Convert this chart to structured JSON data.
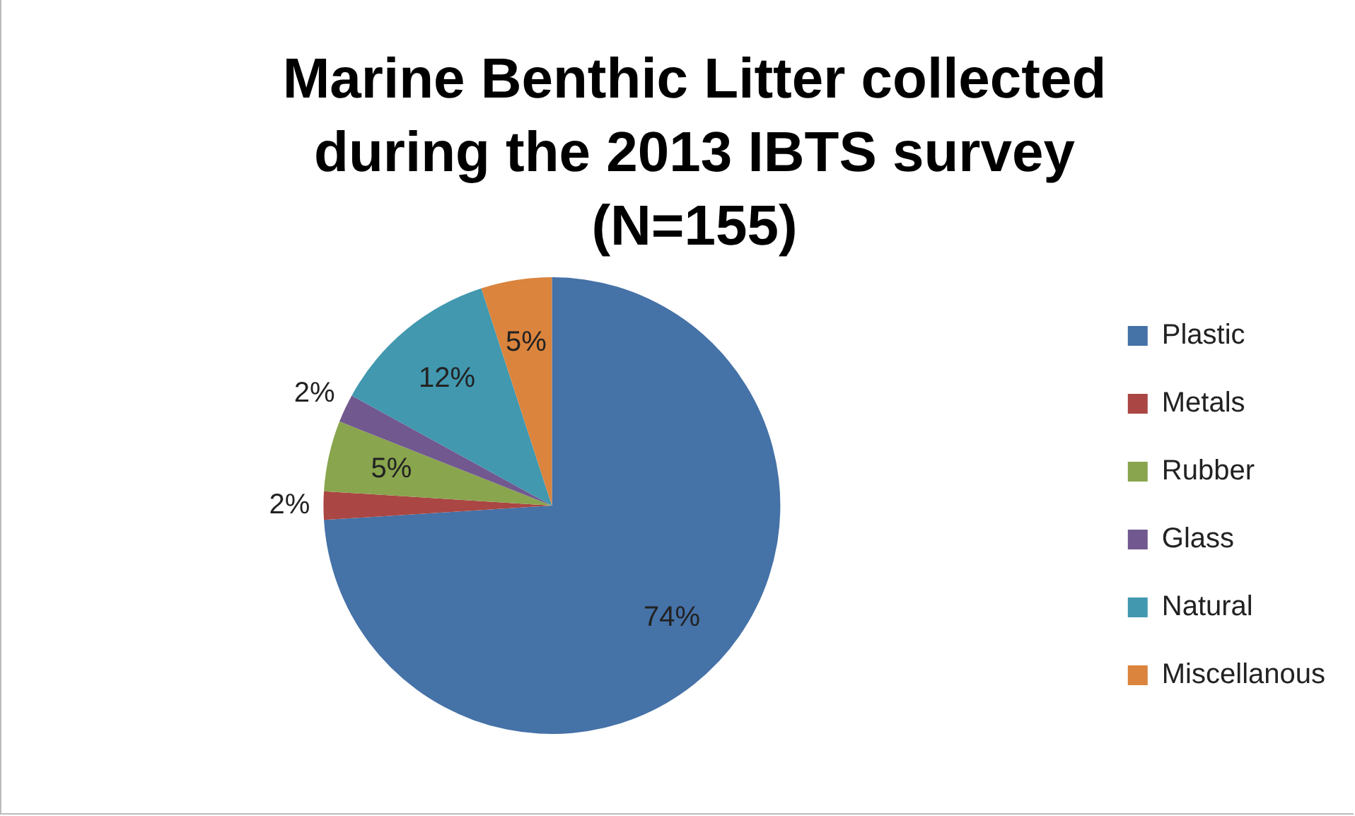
{
  "chart_data": {
    "type": "pie",
    "title": "Marine Benthic Litter collected during the 2013 IBTS survey (N=155)",
    "categories": [
      "Plastic",
      "Metals",
      "Rubber",
      "Glass",
      "Natural",
      "Miscellanous"
    ],
    "values": [
      74,
      2,
      5,
      2,
      12,
      5
    ],
    "value_labels": [
      "74%",
      "2%",
      "5%",
      "2%",
      "12%",
      "5%"
    ],
    "colors": [
      "#4572a7",
      "#aa4643",
      "#89a54e",
      "#71588f",
      "#4198af",
      "#db843d"
    ],
    "legend": "right"
  }
}
